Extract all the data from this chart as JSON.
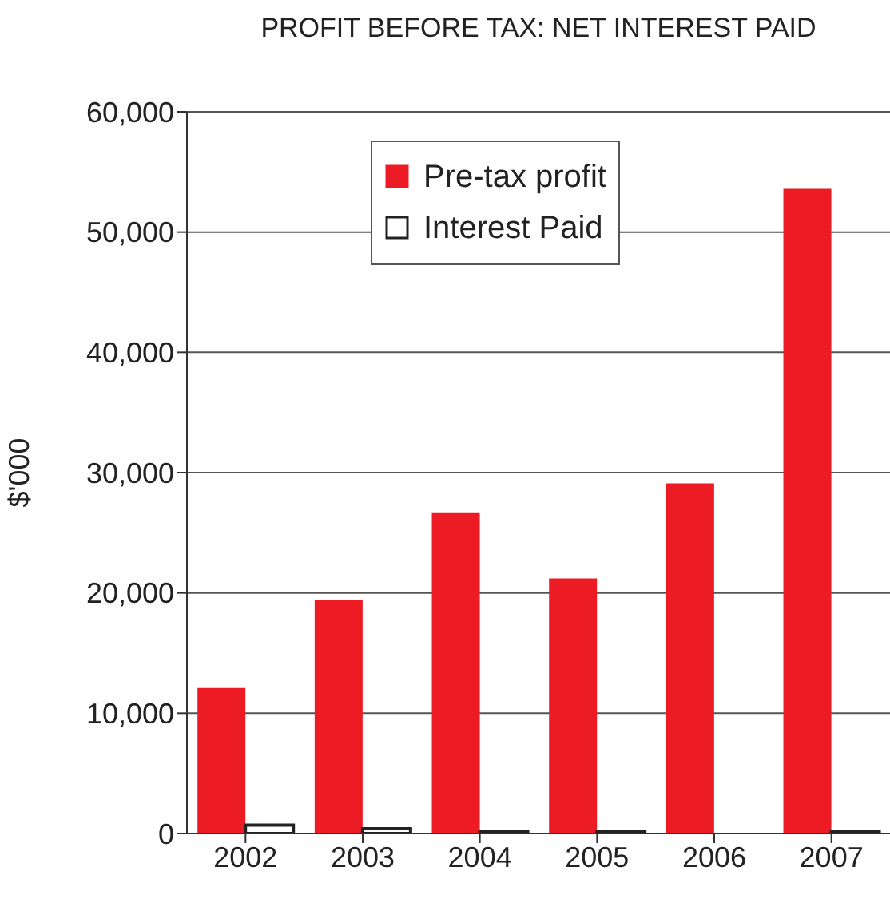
{
  "chart_data": {
    "type": "bar",
    "title": "PROFIT BEFORE TAX: NET INTEREST PAID",
    "ylabel": "$'000",
    "categories": [
      "2002",
      "2003",
      "2004",
      "2005",
      "2006",
      "2007"
    ],
    "series": [
      {
        "name": "Pre-tax profit",
        "color": "#ed1c24",
        "values": [
          12100,
          19400,
          26700,
          21200,
          29100,
          53600
        ]
      },
      {
        "name": "Interest Paid",
        "color": "#ffffff",
        "values": [
          700,
          400,
          200,
          200,
          0,
          200
        ]
      }
    ],
    "ylim": [
      0,
      60000
    ],
    "yticks": [
      0,
      {
        "value": 10000,
        "label": "10,000"
      },
      {
        "value": 20000,
        "label": "20,000"
      },
      {
        "value": 30000,
        "label": "30,000"
      },
      {
        "value": 40000,
        "label": "40,000"
      },
      {
        "value": 50000,
        "label": "50,000"
      },
      {
        "value": 60000,
        "label": "60,000"
      }
    ],
    "grid": "y",
    "legend": "top"
  }
}
